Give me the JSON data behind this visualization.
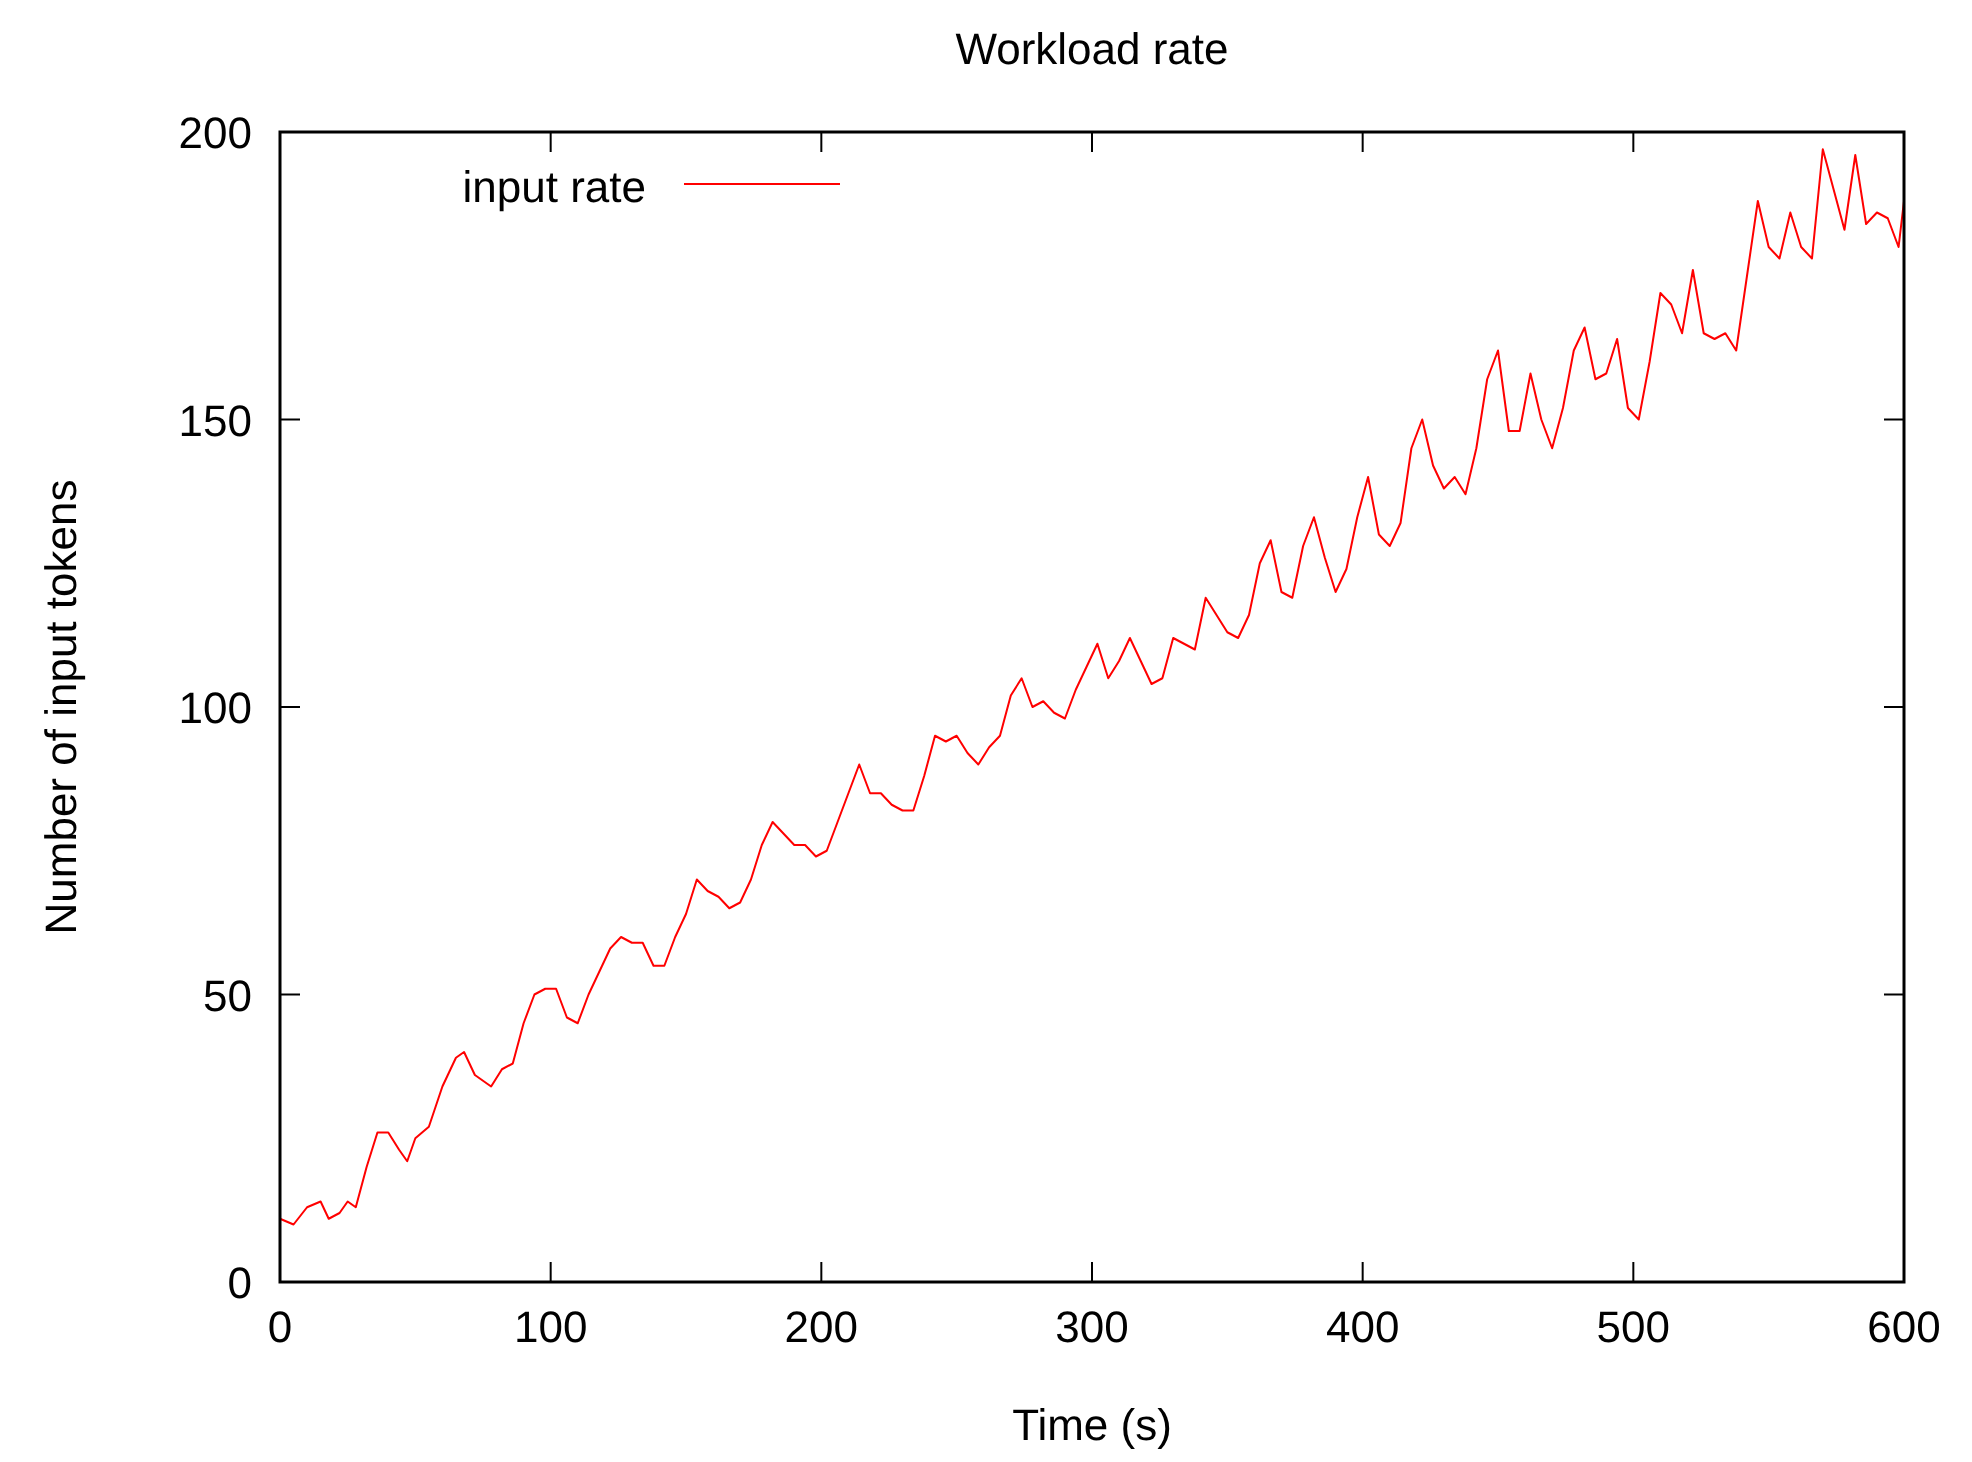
{
  "chart_data": {
    "type": "line",
    "title": "Workload rate",
    "xlabel": "Time (s)",
    "ylabel": "Number of input tokens",
    "xlim": [
      0,
      600
    ],
    "ylim": [
      0,
      200
    ],
    "xticks": [
      0,
      100,
      200,
      300,
      400,
      500,
      600
    ],
    "yticks": [
      0,
      50,
      100,
      150,
      200
    ],
    "grid": false,
    "legend": "top left",
    "line_style": "solid",
    "x": [
      0,
      5,
      10,
      15,
      18,
      22,
      25,
      28,
      32,
      36,
      40,
      44,
      47,
      50,
      55,
      60,
      65,
      68,
      72,
      78,
      82,
      86,
      90,
      94,
      98,
      102,
      106,
      110,
      114,
      118,
      122,
      126,
      130,
      134,
      138,
      142,
      146,
      150,
      154,
      158,
      162,
      166,
      170,
      174,
      178,
      182,
      186,
      190,
      194,
      198,
      202,
      206,
      210,
      214,
      218,
      222,
      226,
      230,
      234,
      238,
      242,
      246,
      250,
      254,
      258,
      262,
      266,
      270,
      274,
      278,
      282,
      286,
      290,
      294,
      298,
      302,
      306,
      310,
      314,
      318,
      322,
      326,
      330,
      334,
      338,
      342,
      346,
      350,
      354,
      358,
      362,
      366,
      370,
      374,
      378,
      382,
      386,
      390,
      394,
      398,
      402,
      406,
      410,
      414,
      418,
      422,
      426,
      430,
      434,
      438,
      442,
      446,
      450,
      454,
      458,
      462,
      466,
      470,
      474,
      478,
      482,
      486,
      490,
      494,
      498,
      502,
      506,
      510,
      514,
      518,
      522,
      526,
      530,
      534,
      538,
      542,
      546,
      550,
      554,
      558,
      562,
      566,
      570,
      574,
      578,
      582,
      586,
      590,
      594,
      598,
      600
    ],
    "series": [
      {
        "name": "input rate",
        "color": "#ff0000",
        "values": [
          11,
          10,
          13,
          14,
          11,
          12,
          14,
          13,
          20,
          26,
          26,
          23,
          21,
          25,
          27,
          34,
          39,
          40,
          36,
          34,
          37,
          38,
          45,
          50,
          51,
          51,
          46,
          45,
          50,
          54,
          58,
          60,
          59,
          59,
          55,
          55,
          60,
          64,
          70,
          68,
          67,
          65,
          66,
          70,
          76,
          80,
          78,
          76,
          76,
          74,
          75,
          80,
          85,
          90,
          85,
          85,
          83,
          82,
          82,
          88,
          95,
          94,
          95,
          92,
          90,
          93,
          95,
          102,
          105,
          100,
          101,
          99,
          98,
          103,
          107,
          111,
          105,
          108,
          112,
          108,
          104,
          105,
          112,
          111,
          110,
          119,
          116,
          113,
          112,
          116,
          125,
          129,
          120,
          119,
          128,
          133,
          126,
          120,
          124,
          133,
          140,
          130,
          128,
          132,
          145,
          150,
          142,
          138,
          140,
          137,
          145,
          157,
          162,
          148,
          148,
          158,
          150,
          145,
          152,
          162,
          166,
          157,
          158,
          164,
          152,
          150,
          160,
          172,
          170,
          165,
          176,
          165,
          164,
          165,
          162,
          175,
          188,
          180,
          178,
          186,
          180,
          178,
          197,
          190,
          183,
          196,
          184,
          186,
          185,
          180,
          188
        ]
      }
    ]
  }
}
